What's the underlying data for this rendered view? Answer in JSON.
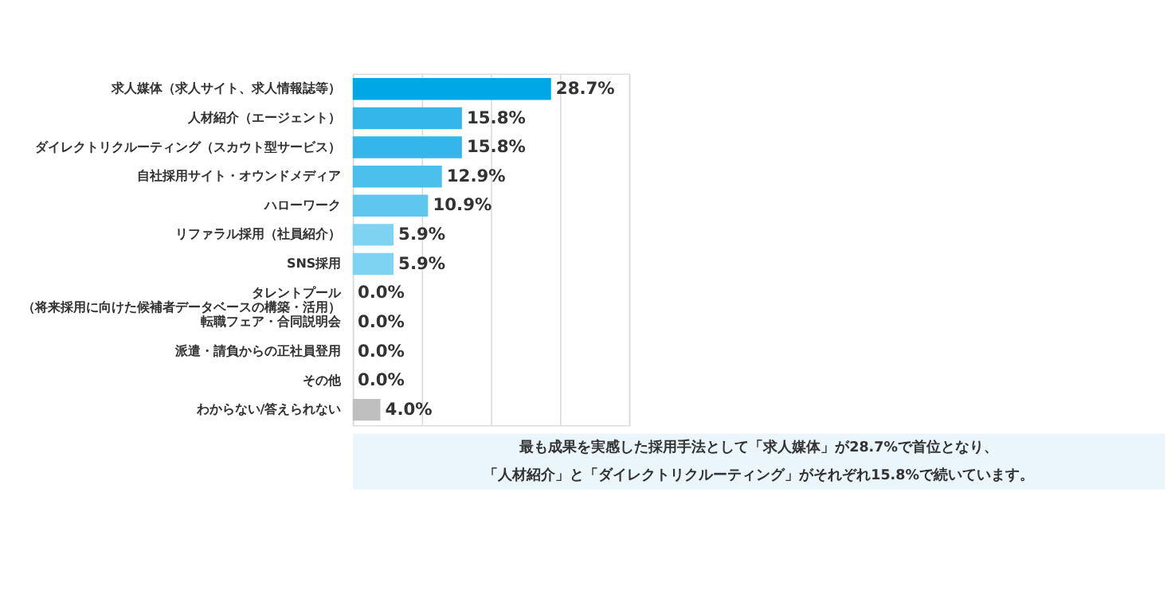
{
  "chart_data": {
    "type": "bar",
    "orientation": "horizontal",
    "categories": [
      "求人媒体（求人サイト、求人情報誌等）",
      "人材紹介（エージェント）",
      "ダイレクトリクルーティング（スカウト型サービス）",
      "自社採用サイト・オウンドメディア",
      "ハローワーク",
      "リファラル採用（社員紹介）",
      "SNS採用",
      "タレントプール（将来採用に向けた候補者データベースの構築・活用）",
      "転職フェア・合同説明会",
      "派遣・請負からの正社員登用",
      "その他",
      "わからない/答えられない"
    ],
    "values": [
      28.7,
      15.8,
      15.8,
      12.9,
      10.9,
      5.9,
      5.9,
      0.0,
      0.0,
      0.0,
      0.0,
      4.0
    ],
    "colors": [
      "#00a7e6",
      "#35b6ea",
      "#35b6ea",
      "#4cc0ed",
      "#5ec6ef",
      "#7fd3f2",
      "#7fd3f2",
      "#7fd3f2",
      "#7fd3f2",
      "#7fd3f2",
      "#7fd3f2",
      "#bfbfbf"
    ],
    "value_labels": [
      "28.7%",
      "15.8%",
      "15.8%",
      "12.9%",
      "10.9%",
      "5.9%",
      "5.9%",
      "0.0%",
      "0.0%",
      "0.0%",
      "0.0%",
      "4.0%"
    ],
    "xlim": [
      0,
      40
    ],
    "xticks": [
      {
        "value": 0,
        "label": null
      },
      {
        "value": 10,
        "label": null
      },
      {
        "value": 20,
        "label": null
      },
      {
        "value": 30,
        "label": null
      },
      {
        "value": 40,
        "label": null
      }
    ],
    "grid": "x",
    "tick_labels": "y",
    "annotations": [
      "最も成果を実感した採用手法として「求人媒体」が28.7%で首位となり、「人材紹介」と「ダイレクトリクルーティング」がそれぞれ15.8%で続いています。"
    ]
  }
}
